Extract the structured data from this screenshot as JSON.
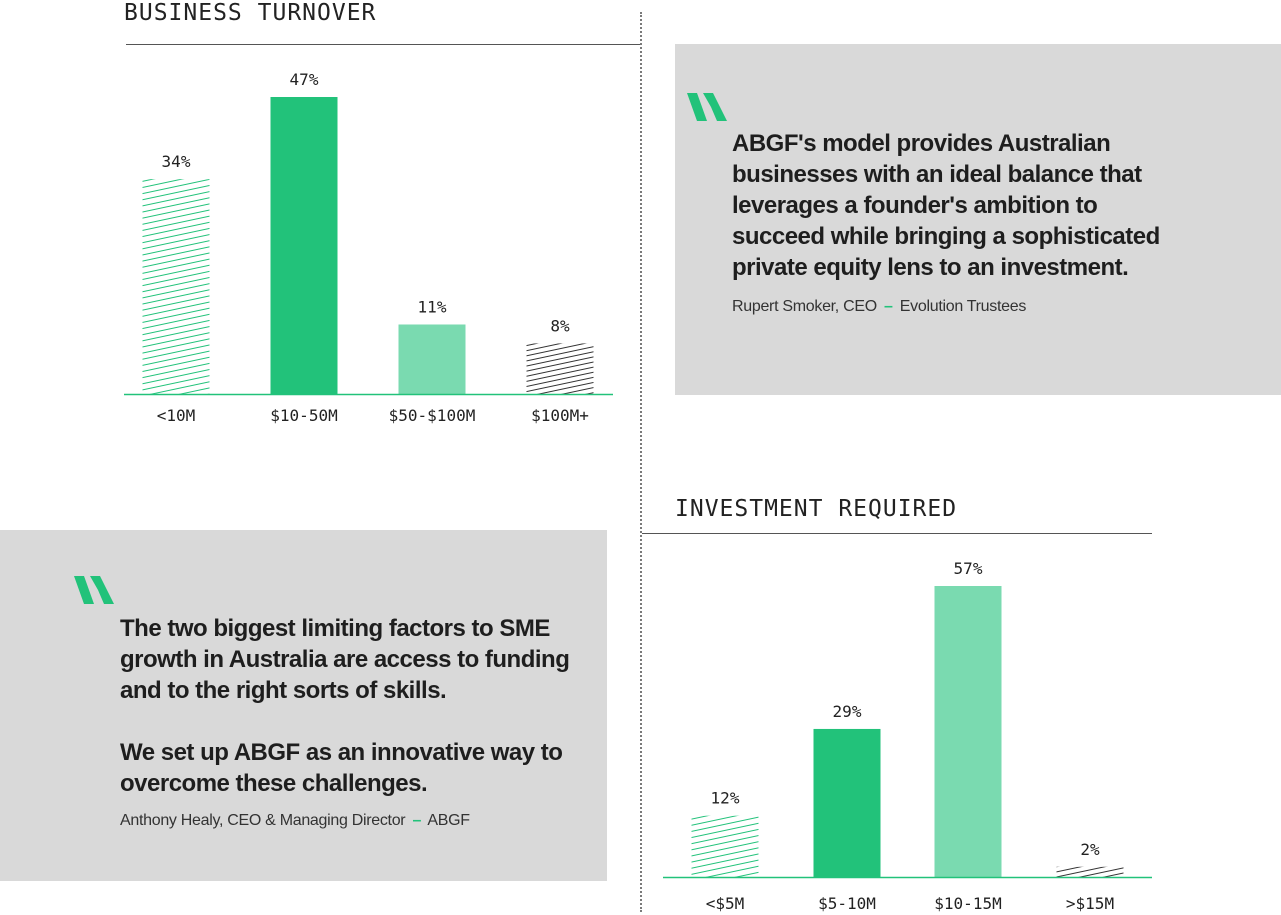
{
  "colors": {
    "green_dark": "#22c27a",
    "green_light": "#7adab0",
    "hatch_green": "#22c27a",
    "hatch_grey": "#333333",
    "quote_bg": "#d9d9d9",
    "axis": "#22c27a"
  },
  "icons": {
    "quote": "quote-mark-icon"
  },
  "chart_data": [
    {
      "type": "bar",
      "title": "BUSINESS TURNOVER",
      "categories": [
        "<10M",
        "$10-50M",
        "$50-$100M",
        "$100M+"
      ],
      "values": [
        34,
        47,
        11,
        8
      ],
      "value_labels": [
        "34%",
        "47%",
        "11%",
        "8%"
      ],
      "styles": [
        "hatch-green",
        "solid-dark",
        "solid-light",
        "hatch-grey"
      ],
      "ylim": [
        0,
        47
      ],
      "grid": false,
      "xlabel": "",
      "ylabel": ""
    },
    {
      "type": "bar",
      "title": "INVESTMENT REQUIRED",
      "categories": [
        "<$5M",
        "$5-10M",
        "$10-15M",
        ">$15M"
      ],
      "values": [
        12,
        29,
        57,
        2
      ],
      "value_labels": [
        "12%",
        "29%",
        "57%",
        "2%"
      ],
      "styles": [
        "hatch-green",
        "solid-dark",
        "solid-light",
        "hatch-grey"
      ],
      "ylim": [
        0,
        57
      ],
      "grid": false,
      "xlabel": "",
      "ylabel": ""
    }
  ],
  "quotes": [
    {
      "paragraphs": [
        "ABGF's model provides Australian businesses with an ideal balance that leverages a founder's ambition to succeed while bringing a sophisticated private equity lens to an investment."
      ],
      "author": "Rupert Smoker, CEO",
      "dash": "–",
      "org": "Evolution Trustees"
    },
    {
      "paragraphs": [
        "The two biggest limiting factors to SME growth in Australia are access to funding and to the right sorts of skills.",
        "We set up ABGF as an innovative way to overcome these challenges."
      ],
      "author": "Anthony Healy, CEO & Managing Director",
      "dash": "–",
      "org": "ABGF"
    }
  ]
}
